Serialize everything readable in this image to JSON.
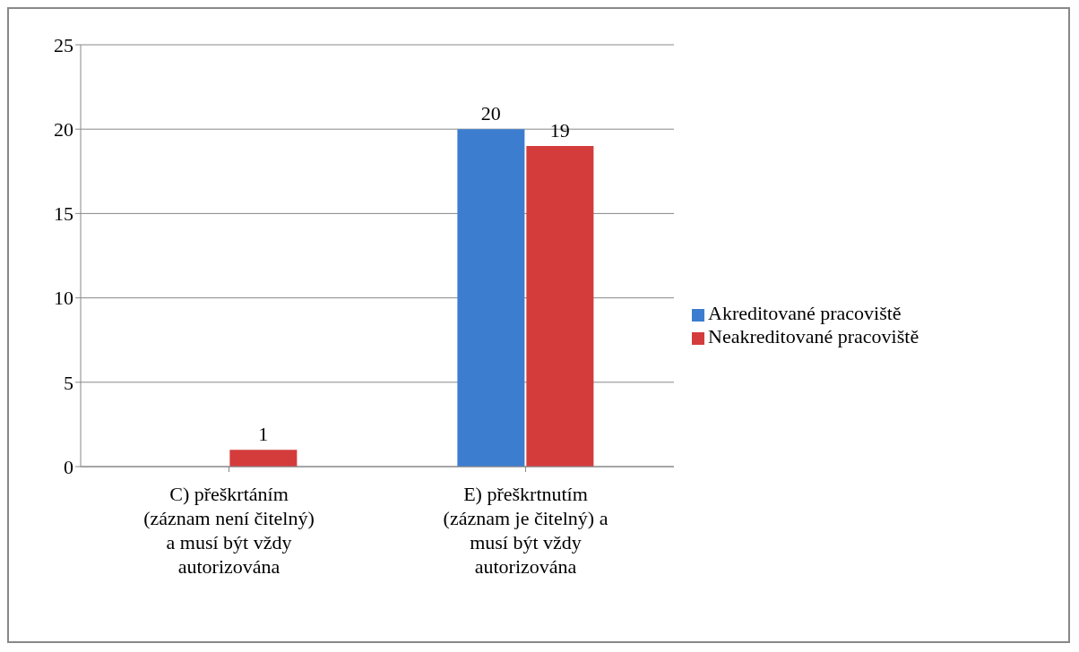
{
  "chart_data": {
    "type": "bar",
    "categories": [
      "C) přeškrtáním (záznam není čitelný) a musí být vždy autorizována",
      "E) přeškrtnutím (záznam je čitelný) a musí být vždy autorizována"
    ],
    "series": [
      {
        "name": "Akreditované pracoviště",
        "color": "#3c7dd0",
        "values": [
          null,
          20
        ],
        "value_labels": [
          null,
          "20"
        ]
      },
      {
        "name": "Neakreditované pracoviště",
        "color": "#d43c3c",
        "values": [
          1,
          19
        ],
        "value_labels": [
          "1",
          "19"
        ]
      }
    ],
    "ylim": [
      0,
      25
    ],
    "yticks": [
      0,
      5,
      10,
      15,
      20,
      25
    ],
    "grid": "y",
    "legend": "right"
  }
}
